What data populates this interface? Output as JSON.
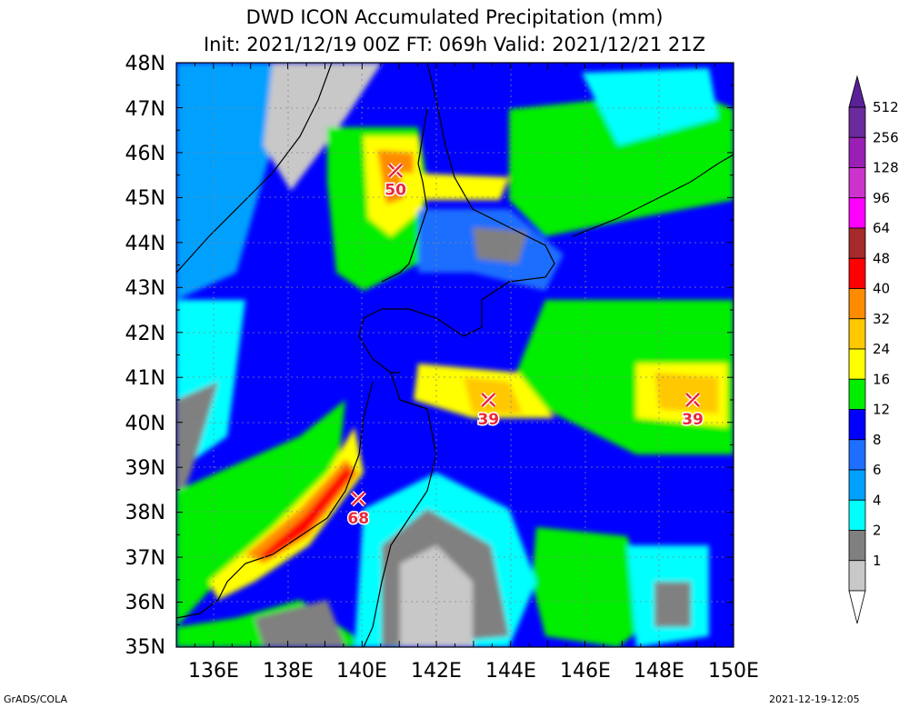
{
  "title": "DWD ICON Accumulated Precipitation (mm)",
  "subtitle": "Init: 2021/12/19 00Z  FT: 069h  Valid: 2021/12/21 21Z",
  "lat_labels": [
    "48N",
    "47N",
    "46N",
    "45N",
    "44N",
    "43N",
    "42N",
    "41N",
    "40N",
    "39N",
    "38N",
    "37N",
    "36N",
    "35N"
  ],
  "lon_labels": [
    "136E",
    "138E",
    "140E",
    "142E",
    "144E",
    "146E",
    "148E",
    "150E"
  ],
  "extent": {
    "lon": [
      135,
      150
    ],
    "lat": [
      35,
      48
    ]
  },
  "maxima": [
    {
      "label": "50",
      "lon": 140.9,
      "lat": 45.6
    },
    {
      "label": "39",
      "lon": 143.4,
      "lat": 40.5
    },
    {
      "label": "39",
      "lon": 148.9,
      "lat": 40.5
    },
    {
      "label": "68",
      "lon": 139.9,
      "lat": 38.3
    }
  ],
  "colorbar": {
    "labels": [
      "512",
      "256",
      "128",
      "96",
      "64",
      "48",
      "40",
      "32",
      "24",
      "16",
      "12",
      "8",
      "6",
      "4",
      "2",
      "1"
    ],
    "colors": [
      "#6c2b9c",
      "#9a1fb5",
      "#cc33cc",
      "#ff00ff",
      "#a52a2a",
      "#ff0000",
      "#ff8c00",
      "#ffc800",
      "#ffff00",
      "#00ee00",
      "#0000ff",
      "#1e6eff",
      "#00a0ff",
      "#00ffff",
      "#808080",
      "#c8c8c8"
    ],
    "min_color": "#ffffff",
    "max_color": "#5a2098"
  },
  "footer_left": "GrADS/COLA",
  "footer_right": "2021-12-19-12:05"
}
